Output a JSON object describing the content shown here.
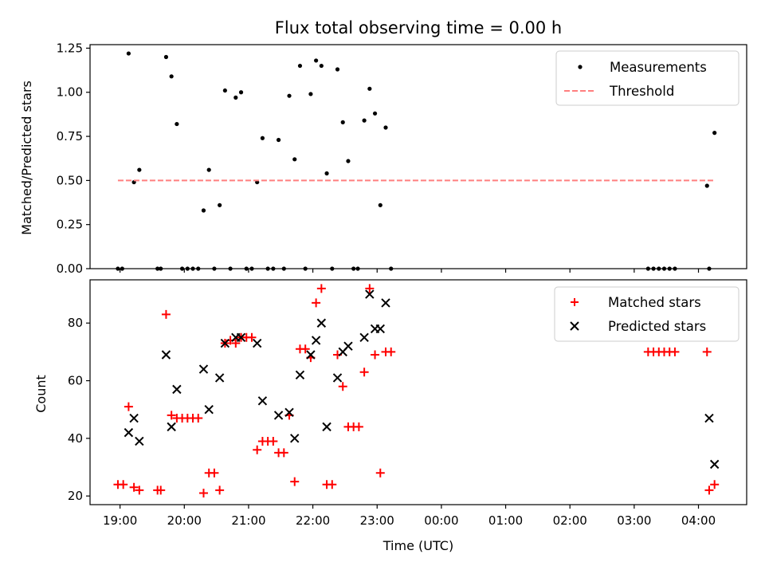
{
  "chart_data": [
    {
      "type": "scatter",
      "title": "Flux total observing time = 0.00 h",
      "ylabel": "Matched/Predicted stars",
      "xlabel": "",
      "xlim": [
        "18:32",
        "04:45"
      ],
      "ylim": [
        0,
        1.27
      ],
      "yticks": [
        "0.00",
        "0.25",
        "0.50",
        "0.75",
        "1.00",
        "1.25"
      ],
      "grid": false,
      "legend_position": "top-right",
      "series": [
        {
          "name": "Measurements",
          "marker": "dot",
          "color": "#000000",
          "points": [
            [
              "18:58",
              0
            ],
            [
              "19:02",
              0
            ],
            [
              "19:08",
              1.22
            ],
            [
              "19:13",
              0.49
            ],
            [
              "19:18",
              0.56
            ],
            [
              "19:35",
              0
            ],
            [
              "19:38",
              0
            ],
            [
              "19:43",
              1.2
            ],
            [
              "19:48",
              1.09
            ],
            [
              "19:53",
              0.82
            ],
            [
              "19:58",
              0
            ],
            [
              "20:03",
              0
            ],
            [
              "20:08",
              0
            ],
            [
              "20:13",
              0
            ],
            [
              "20:18",
              0.33
            ],
            [
              "20:23",
              0.56
            ],
            [
              "20:28",
              0
            ],
            [
              "20:33",
              0.36
            ],
            [
              "20:38",
              1.01
            ],
            [
              "20:43",
              0
            ],
            [
              "20:48",
              0.97
            ],
            [
              "20:53",
              1.0
            ],
            [
              "20:58",
              0
            ],
            [
              "21:03",
              0
            ],
            [
              "21:08",
              0.49
            ],
            [
              "21:13",
              0.74
            ],
            [
              "21:18",
              0
            ],
            [
              "21:23",
              0
            ],
            [
              "21:28",
              0.73
            ],
            [
              "21:33",
              0
            ],
            [
              "21:38",
              0.98
            ],
            [
              "21:43",
              0.62
            ],
            [
              "21:48",
              1.15
            ],
            [
              "21:53",
              0
            ],
            [
              "21:58",
              0.99
            ],
            [
              "22:03",
              1.18
            ],
            [
              "22:08",
              1.15
            ],
            [
              "22:13",
              0.54
            ],
            [
              "22:18",
              0
            ],
            [
              "22:23",
              1.13
            ],
            [
              "22:28",
              0.83
            ],
            [
              "22:33",
              0.61
            ],
            [
              "22:38",
              0
            ],
            [
              "22:42",
              0
            ],
            [
              "22:48",
              0.84
            ],
            [
              "22:53",
              1.02
            ],
            [
              "22:58",
              0.88
            ],
            [
              "23:03",
              0.36
            ],
            [
              "23:08",
              0.8
            ],
            [
              "23:13",
              0
            ],
            [
              "03:13",
              0
            ],
            [
              "03:18",
              0
            ],
            [
              "03:23",
              0
            ],
            [
              "03:28",
              0
            ],
            [
              "03:33",
              0
            ],
            [
              "03:38",
              0
            ],
            [
              "04:08",
              0.47
            ],
            [
              "04:10",
              0
            ],
            [
              "04:15",
              0.77
            ]
          ]
        },
        {
          "name": "Threshold",
          "marker": "dashed-line",
          "color": "#ff7f7f",
          "points": [
            [
              "18:58",
              0.5
            ],
            [
              "04:15",
              0.5
            ]
          ]
        }
      ]
    },
    {
      "type": "scatter",
      "title": "",
      "ylabel": "Count",
      "xlabel": "Time (UTC)",
      "xlim": [
        "18:32",
        "04:45"
      ],
      "ylim": [
        17,
        95
      ],
      "yticks": [
        "20",
        "40",
        "60",
        "80"
      ],
      "xticks": [
        "19:00",
        "20:00",
        "21:00",
        "22:00",
        "23:00",
        "00:00",
        "01:00",
        "02:00",
        "03:00",
        "04:00"
      ],
      "grid": false,
      "legend_position": "top-right",
      "series": [
        {
          "name": "Matched stars",
          "marker": "plus",
          "color": "#ff0000",
          "points": [
            [
              "18:58",
              24
            ],
            [
              "19:03",
              24
            ],
            [
              "19:08",
              51
            ],
            [
              "19:13",
              23
            ],
            [
              "19:18",
              22
            ],
            [
              "19:35",
              22
            ],
            [
              "19:38",
              22
            ],
            [
              "19:43",
              83
            ],
            [
              "19:48",
              48
            ],
            [
              "19:53",
              47
            ],
            [
              "19:58",
              47
            ],
            [
              "20:03",
              47
            ],
            [
              "20:08",
              47
            ],
            [
              "20:13",
              47
            ],
            [
              "20:18",
              21
            ],
            [
              "20:23",
              28
            ],
            [
              "20:28",
              28
            ],
            [
              "20:33",
              22
            ],
            [
              "20:38",
              73
            ],
            [
              "20:43",
              74
            ],
            [
              "20:48",
              73
            ],
            [
              "20:53",
              75
            ],
            [
              "20:58",
              75
            ],
            [
              "21:03",
              75
            ],
            [
              "21:08",
              36
            ],
            [
              "21:13",
              39
            ],
            [
              "21:18",
              39
            ],
            [
              "21:23",
              39
            ],
            [
              "21:28",
              35
            ],
            [
              "21:33",
              35
            ],
            [
              "21:38",
              48
            ],
            [
              "21:43",
              25
            ],
            [
              "21:48",
              71
            ],
            [
              "21:53",
              71
            ],
            [
              "21:58",
              68
            ],
            [
              "22:03",
              87
            ],
            [
              "22:08",
              92
            ],
            [
              "22:13",
              24
            ],
            [
              "22:18",
              24
            ],
            [
              "22:23",
              69
            ],
            [
              "22:28",
              58
            ],
            [
              "22:33",
              44
            ],
            [
              "22:38",
              44
            ],
            [
              "22:43",
              44
            ],
            [
              "22:48",
              63
            ],
            [
              "22:53",
              92
            ],
            [
              "22:58",
              69
            ],
            [
              "23:03",
              28
            ],
            [
              "23:08",
              70
            ],
            [
              "23:13",
              70
            ],
            [
              "03:13",
              70
            ],
            [
              "03:18",
              70
            ],
            [
              "03:23",
              70
            ],
            [
              "03:28",
              70
            ],
            [
              "03:33",
              70
            ],
            [
              "03:38",
              70
            ],
            [
              "04:08",
              70
            ],
            [
              "04:10",
              22
            ],
            [
              "04:15",
              24
            ]
          ]
        },
        {
          "name": "Predicted stars",
          "marker": "cross",
          "color": "#000000",
          "points": [
            [
              "19:08",
              42
            ],
            [
              "19:13",
              47
            ],
            [
              "19:18",
              39
            ],
            [
              "19:43",
              69
            ],
            [
              "19:48",
              44
            ],
            [
              "19:53",
              57
            ],
            [
              "20:18",
              64
            ],
            [
              "20:23",
              50
            ],
            [
              "20:33",
              61
            ],
            [
              "20:38",
              73
            ],
            [
              "20:48",
              75
            ],
            [
              "20:53",
              75
            ],
            [
              "21:08",
              73
            ],
            [
              "21:13",
              53
            ],
            [
              "21:28",
              48
            ],
            [
              "21:38",
              49
            ],
            [
              "21:43",
              40
            ],
            [
              "21:48",
              62
            ],
            [
              "21:58",
              69
            ],
            [
              "22:03",
              74
            ],
            [
              "22:08",
              80
            ],
            [
              "22:13",
              44
            ],
            [
              "22:23",
              61
            ],
            [
              "22:28",
              70
            ],
            [
              "22:33",
              72
            ],
            [
              "22:48",
              75
            ],
            [
              "22:53",
              90
            ],
            [
              "22:58",
              78
            ],
            [
              "23:03",
              78
            ],
            [
              "23:08",
              87
            ],
            [
              "04:10",
              47
            ],
            [
              "04:15",
              31
            ]
          ]
        }
      ]
    }
  ]
}
